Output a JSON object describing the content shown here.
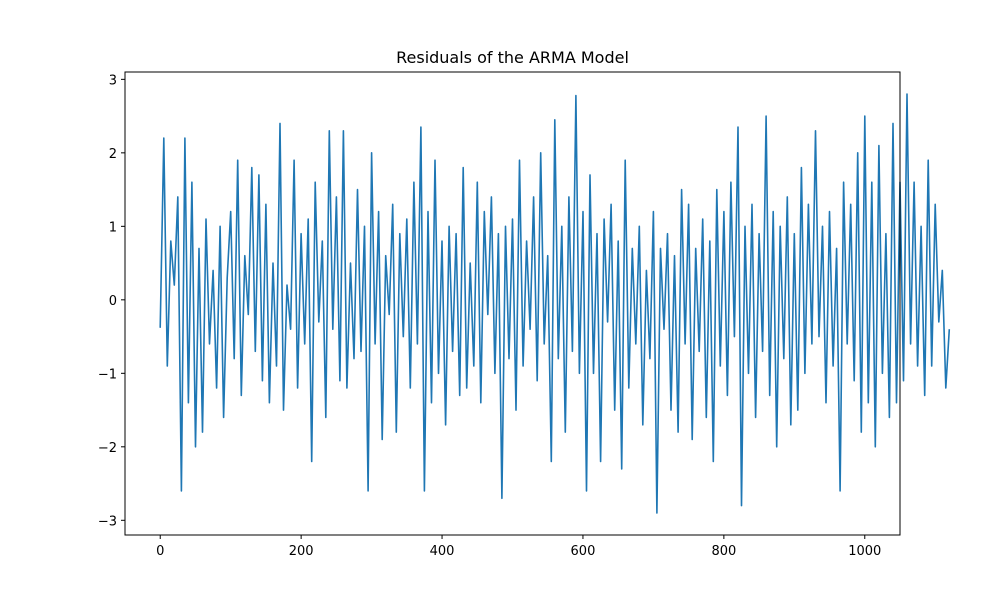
{
  "chart_data": {
    "type": "line",
    "title": "Residuals of the ARMA Model",
    "xlabel": "",
    "ylabel": "",
    "xlim": [
      -50,
      1050
    ],
    "ylim": [
      -3.2,
      3.1
    ],
    "grid": false,
    "line_color": "#1f77b4",
    "x_ticks": [
      0,
      200,
      400,
      600,
      800,
      1000
    ],
    "x_tick_labels": [
      "0",
      "200",
      "400",
      "600",
      "800",
      "1000"
    ],
    "y_ticks": [
      -3,
      -2,
      -1,
      0,
      1,
      2,
      3
    ],
    "y_tick_labels": [
      "−3",
      "−2",
      "−1",
      "0",
      "1",
      "2",
      "3"
    ],
    "x_step": 5,
    "series": [
      {
        "values": [
          -0.38,
          2.2,
          -0.9,
          0.8,
          0.2,
          1.4,
          -2.6,
          2.2,
          -1.4,
          1.6,
          -2.0,
          0.7,
          -1.8,
          1.1,
          -0.6,
          0.4,
          -1.2,
          1.0,
          -1.6,
          0.3,
          1.2,
          -0.8,
          1.9,
          -1.3,
          0.6,
          -0.2,
          1.8,
          -0.7,
          1.7,
          -1.1,
          1.3,
          -1.4,
          0.5,
          -0.9,
          2.4,
          -1.5,
          0.2,
          -0.4,
          1.9,
          -1.2,
          0.9,
          -0.6,
          1.1,
          -2.2,
          1.6,
          -0.3,
          0.8,
          -1.6,
          2.3,
          -0.4,
          1.4,
          -1.1,
          2.3,
          -1.2,
          0.5,
          -0.8,
          1.5,
          -0.7,
          1.0,
          -2.6,
          2.0,
          -0.6,
          1.2,
          -1.9,
          0.6,
          -0.2,
          1.3,
          -1.8,
          0.9,
          -0.5,
          1.1,
          -1.2,
          1.6,
          -0.6,
          2.35,
          -2.6,
          1.2,
          -1.4,
          1.9,
          -1.0,
          0.8,
          -1.7,
          1.0,
          -0.7,
          0.9,
          -1.3,
          1.8,
          -1.2,
          0.5,
          -0.9,
          1.6,
          -1.4,
          1.2,
          -0.2,
          1.4,
          -1.0,
          0.9,
          -2.7,
          1.0,
          -0.8,
          1.1,
          -1.5,
          1.9,
          -0.9,
          0.8,
          -0.4,
          1.4,
          -1.1,
          2.0,
          -0.6,
          0.6,
          -2.2,
          2.45,
          -0.8,
          1.0,
          -1.8,
          1.4,
          -0.7,
          2.78,
          -1.0,
          1.2,
          -2.6,
          1.7,
          -1.0,
          0.9,
          -2.2,
          1.1,
          -0.3,
          1.3,
          -1.5,
          0.8,
          -2.3,
          1.9,
          -1.2,
          0.7,
          -0.6,
          1.0,
          -1.7,
          0.4,
          -0.8,
          1.2,
          -2.9,
          0.7,
          -0.4,
          0.9,
          -1.5,
          0.6,
          -1.8,
          1.5,
          -0.6,
          1.3,
          -1.9,
          0.7,
          -0.7,
          1.1,
          -1.6,
          0.8,
          -2.2,
          1.5,
          -0.9,
          1.2,
          -1.3,
          1.6,
          -0.5,
          2.35,
          -2.8,
          1.0,
          -1.0,
          1.3,
          -1.6,
          0.9,
          -0.7,
          2.5,
          -1.3,
          1.2,
          -2.0,
          1.0,
          -0.8,
          1.4,
          -1.7,
          0.9,
          -1.5,
          1.8,
          -1.0,
          1.3,
          -0.6,
          2.3,
          -0.5,
          1.0,
          -1.4,
          1.2,
          -0.9,
          0.7,
          -2.6,
          1.6,
          -0.6,
          1.3,
          -1.1,
          2.0,
          -1.8,
          2.5,
          -1.4,
          1.6,
          -2.0,
          2.1,
          -1.0,
          0.9,
          -1.6,
          2.4,
          -1.4,
          1.6,
          -1.1,
          2.8,
          -0.6,
          1.6,
          -0.9,
          1.0,
          -1.3,
          1.9,
          -0.9,
          1.3,
          -0.3,
          0.4,
          -1.2,
          -0.4
        ]
      }
    ]
  }
}
